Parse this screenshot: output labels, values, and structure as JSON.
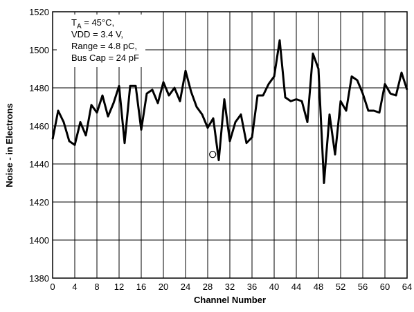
{
  "chart_data": {
    "type": "line",
    "x_label": "Channel Number",
    "y_label": "Noise - in Electrons",
    "annotation": {
      "lines": [
        {
          "main": "T",
          "sub": "A",
          "rest": " = 45°C,"
        },
        "VDD = 3.4 V,",
        "Range = 4.8 pC,",
        "Bus Cap = 24 pF"
      ]
    },
    "x": [
      0,
      1,
      2,
      3,
      4,
      5,
      6,
      7,
      8,
      9,
      10,
      11,
      12,
      13,
      14,
      15,
      16,
      17,
      18,
      19,
      20,
      21,
      22,
      23,
      24,
      25,
      26,
      27,
      28,
      29,
      30,
      31,
      32,
      33,
      34,
      35,
      36,
      37,
      38,
      39,
      40,
      41,
      42,
      43,
      44,
      45,
      46,
      47,
      48,
      49,
      50,
      51,
      52,
      53,
      54,
      55,
      56,
      57,
      58,
      59,
      60,
      61,
      62,
      63,
      64
    ],
    "series": [
      {
        "color": "#000000",
        "values": [
          1453,
          1468,
          1462,
          1452,
          1450,
          1462,
          1455,
          1471,
          1467,
          1476,
          1465,
          1472,
          1481,
          1451,
          1481,
          1481,
          1458,
          1477,
          1479,
          1472,
          1483,
          1476,
          1480,
          1473,
          1489,
          1478,
          1470,
          1466,
          1459,
          1464,
          1442,
          1474,
          1452,
          1462,
          1466,
          1451,
          1454,
          1476,
          1476,
          1482,
          1486,
          1505,
          1475,
          1473,
          1474,
          1473,
          1462,
          1498,
          1490,
          1430,
          1466,
          1445,
          1473,
          1468,
          1486,
          1484,
          1477,
          1468,
          1468,
          1467,
          1482,
          1477,
          1476,
          1488,
          1479
        ]
      }
    ],
    "marker_point": {
      "x": 28.9,
      "y": 1445
    },
    "xlim": [
      0,
      64
    ],
    "xticks": [
      0,
      4,
      8,
      12,
      16,
      20,
      24,
      28,
      32,
      36,
      40,
      44,
      48,
      52,
      56,
      60,
      64
    ],
    "ylim": [
      1380,
      1520
    ],
    "yticks": [
      1380,
      1400,
      1420,
      1440,
      1460,
      1480,
      1500,
      1520
    ],
    "grid": true
  }
}
